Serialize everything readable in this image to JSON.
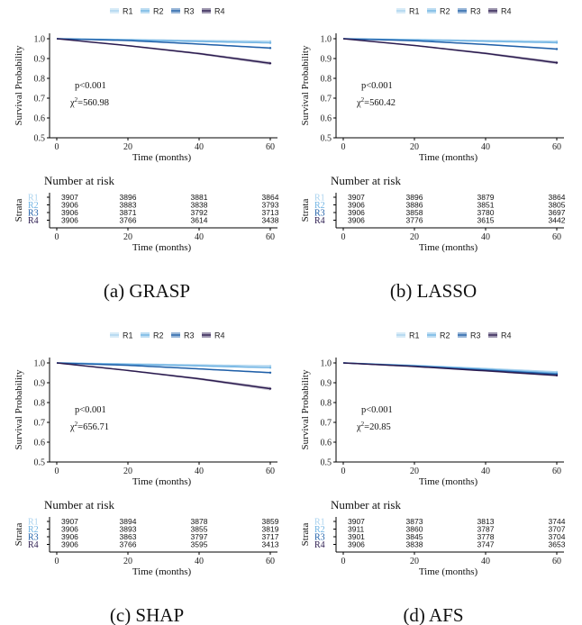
{
  "legend": [
    "R1",
    "R2",
    "R3",
    "R4"
  ],
  "colors": {
    "R1": "#a9d2ee",
    "R2": "#6fb3e3",
    "R3": "#1f5fa8",
    "R4": "#2b1b4f"
  },
  "chart_data": [
    {
      "type": "line",
      "caption": "(a) GRASP",
      "ylabel": "Survival Probability",
      "xlabel": "Time (months)",
      "ylim": [
        0.5,
        1.0
      ],
      "xlim": [
        0,
        60
      ],
      "x_ticks": [
        0,
        20,
        40,
        60
      ],
      "y_ticks": [
        "0.5",
        "0.6",
        "0.7",
        "0.8",
        "0.9",
        "1.0"
      ],
      "p_text": "p<0.001",
      "chi_value": "=560.98",
      "series": [
        {
          "name": "R1",
          "x": [
            0,
            20,
            40,
            60
          ],
          "values": [
            1.0,
            0.996,
            0.991,
            0.987
          ]
        },
        {
          "name": "R2",
          "x": [
            0,
            20,
            40,
            60
          ],
          "values": [
            1.0,
            0.994,
            0.986,
            0.979
          ]
        },
        {
          "name": "R3",
          "x": [
            0,
            20,
            40,
            60
          ],
          "values": [
            1.0,
            0.991,
            0.973,
            0.953
          ]
        },
        {
          "name": "R4",
          "x": [
            0,
            20,
            40,
            60
          ],
          "values": [
            1.0,
            0.965,
            0.925,
            0.876
          ]
        }
      ],
      "risk_title": "Number at risk",
      "risk_ylabel": "Strata",
      "risk_table": [
        [
          "3907",
          "3896",
          "3881",
          "3864"
        ],
        [
          "3906",
          "3883",
          "3838",
          "3793"
        ],
        [
          "3906",
          "3871",
          "3792",
          "3713"
        ],
        [
          "3906",
          "3766",
          "3614",
          "3438"
        ]
      ]
    },
    {
      "type": "line",
      "caption": "(b) LASSO",
      "ylabel": "Survival Probability",
      "xlabel": "Time (months)",
      "ylim": [
        0.5,
        1.0
      ],
      "xlim": [
        0,
        60
      ],
      "x_ticks": [
        0,
        20,
        40,
        60
      ],
      "y_ticks": [
        "0.5",
        "0.6",
        "0.7",
        "0.8",
        "0.9",
        "1.0"
      ],
      "p_text": "p<0.001",
      "chi_value": "=560.42",
      "series": [
        {
          "name": "R1",
          "x": [
            0,
            20,
            40,
            60
          ],
          "values": [
            1.0,
            0.996,
            0.991,
            0.987
          ]
        },
        {
          "name": "R2",
          "x": [
            0,
            20,
            40,
            60
          ],
          "values": [
            1.0,
            0.994,
            0.987,
            0.98
          ]
        },
        {
          "name": "R3",
          "x": [
            0,
            20,
            40,
            60
          ],
          "values": [
            1.0,
            0.99,
            0.971,
            0.948
          ]
        },
        {
          "name": "R4",
          "x": [
            0,
            20,
            40,
            60
          ],
          "values": [
            1.0,
            0.966,
            0.926,
            0.879
          ]
        }
      ],
      "risk_title": "Number at risk",
      "risk_ylabel": "Strata",
      "risk_table": [
        [
          "3907",
          "3896",
          "3879",
          "3864"
        ],
        [
          "3906",
          "3886",
          "3851",
          "3805"
        ],
        [
          "3906",
          "3858",
          "3780",
          "3697"
        ],
        [
          "3906",
          "3776",
          "3615",
          "3442"
        ]
      ]
    },
    {
      "type": "line",
      "caption": "(c) SHAP",
      "ylabel": "Survival Probability",
      "xlabel": "Time (months)",
      "ylim": [
        0.5,
        1.0
      ],
      "xlim": [
        0,
        60
      ],
      "x_ticks": [
        0,
        20,
        40,
        60
      ],
      "y_ticks": [
        "0.5",
        "0.6",
        "0.7",
        "0.8",
        "0.9",
        "1.0"
      ],
      "p_text": "p<0.001",
      "chi_value": "=656.71",
      "series": [
        {
          "name": "R1",
          "x": [
            0,
            20,
            40,
            60
          ],
          "values": [
            1.0,
            0.995,
            0.99,
            0.985
          ]
        },
        {
          "name": "R2",
          "x": [
            0,
            20,
            40,
            60
          ],
          "values": [
            1.0,
            0.993,
            0.985,
            0.976
          ]
        },
        {
          "name": "R3",
          "x": [
            0,
            20,
            40,
            60
          ],
          "values": [
            1.0,
            0.988,
            0.97,
            0.951
          ]
        },
        {
          "name": "R4",
          "x": [
            0,
            20,
            40,
            60
          ],
          "values": [
            1.0,
            0.962,
            0.92,
            0.87
          ]
        }
      ],
      "risk_title": "Number at risk",
      "risk_ylabel": "Strata",
      "risk_table": [
        [
          "3907",
          "3894",
          "3878",
          "3859"
        ],
        [
          "3906",
          "3893",
          "3855",
          "3819"
        ],
        [
          "3906",
          "3863",
          "3797",
          "3717"
        ],
        [
          "3906",
          "3766",
          "3595",
          "3413"
        ]
      ]
    },
    {
      "type": "line",
      "caption": "(d) AFS",
      "ylabel": "Survival Probability",
      "xlabel": "Time (months)",
      "ylim": [
        0.5,
        1.0
      ],
      "xlim": [
        0,
        60
      ],
      "x_ticks": [
        0,
        20,
        40,
        60
      ],
      "y_ticks": [
        "0.5",
        "0.6",
        "0.7",
        "0.8",
        "0.9",
        "1.0"
      ],
      "p_text": "p<0.001",
      "chi_value": "=20.85",
      "series": [
        {
          "name": "R1",
          "x": [
            0,
            20,
            40,
            60
          ],
          "values": [
            1.0,
            0.988,
            0.972,
            0.955
          ]
        },
        {
          "name": "R2",
          "x": [
            0,
            20,
            40,
            60
          ],
          "values": [
            1.0,
            0.986,
            0.968,
            0.948
          ]
        },
        {
          "name": "R3",
          "x": [
            0,
            20,
            40,
            60
          ],
          "values": [
            1.0,
            0.984,
            0.964,
            0.943
          ]
        },
        {
          "name": "R4",
          "x": [
            0,
            20,
            40,
            60
          ],
          "values": [
            1.0,
            0.982,
            0.96,
            0.937
          ]
        }
      ],
      "risk_title": "Number at risk",
      "risk_ylabel": "Strata",
      "risk_table": [
        [
          "3907",
          "3873",
          "3813",
          "3744"
        ],
        [
          "3911",
          "3860",
          "3787",
          "3707"
        ],
        [
          "3901",
          "3845",
          "3778",
          "3704"
        ],
        [
          "3906",
          "3838",
          "3747",
          "3653"
        ]
      ]
    }
  ]
}
